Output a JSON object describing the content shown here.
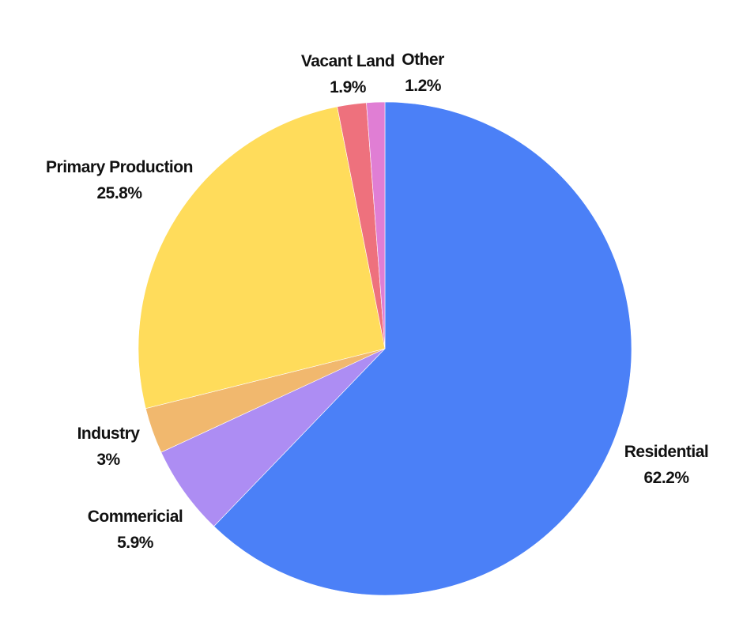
{
  "chart_data": {
    "type": "pie",
    "title": "",
    "start_angle_deg": 0,
    "direction": "clockwise",
    "slices": [
      {
        "label": "Residential",
        "value": 62.2,
        "display": "62.2%",
        "color": "#4B80F7"
      },
      {
        "label": "Commericial",
        "value": 5.9,
        "display": "5.9%",
        "color": "#AD8DF3"
      },
      {
        "label": "Industry",
        "value": 3,
        "display": "3%",
        "color": "#F1B86E"
      },
      {
        "label": "Primary Production",
        "value": 25.8,
        "display": "25.8%",
        "color": "#FFDC5B"
      },
      {
        "label": "Vacant Land",
        "value": 1.9,
        "display": "1.9%",
        "color": "#EE717D"
      },
      {
        "label": "Other",
        "value": 1.2,
        "display": "1.2%",
        "color": "#E07ED4"
      }
    ]
  }
}
